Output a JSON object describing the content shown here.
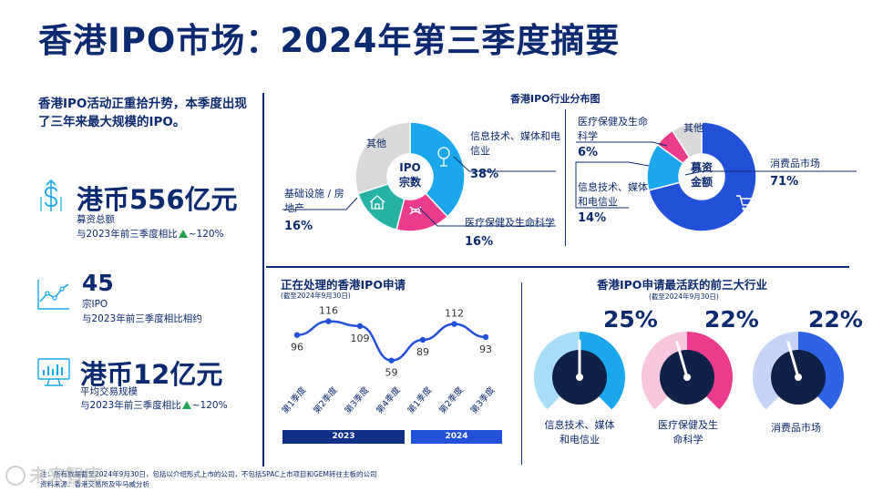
{
  "title": "香港IPO市场：2024年第三季度摘要",
  "intro": "香港IPO活动正重拾升势，本季度出现了三年来最大规模的IPO。",
  "kpis": [
    {
      "value": "港币556亿元",
      "label": "募资总额",
      "compare_prefix": "与2023年前三季度相比",
      "compare_suffix": "~120%",
      "icon": "dollar-growth-icon"
    },
    {
      "value": "45",
      "label": "宗IPO",
      "compare_prefix": "与2023年前三季度相比相约",
      "compare_suffix": "",
      "icon": "line-trend-icon"
    },
    {
      "value": "港币12亿元",
      "label": "平均交易规模",
      "compare_prefix": "与2023年前三季度相比",
      "compare_suffix": "~120%",
      "icon": "monitor-chart-icon"
    }
  ],
  "industry": {
    "title": "香港IPO行业分布图",
    "count_donut": {
      "center_line1": "IPO",
      "center_line2": "宗数",
      "segments": [
        {
          "name": "信息技术、媒体和电信业",
          "pct": 38,
          "label": "38%",
          "color": "#1aa7ec",
          "icon": "brain-tree-icon"
        },
        {
          "name": "医疗保健及生命科学",
          "pct": 16,
          "label": "16%",
          "color": "#ea3b8c",
          "icon": "dna-icon"
        },
        {
          "name": "基础设施 / 房地产",
          "pct": 16,
          "label": "16%",
          "color": "#27b3a4",
          "icon": "house-icon"
        },
        {
          "name": "其他",
          "pct": 30,
          "label": "",
          "color": "#d9d9d9",
          "icon": ""
        }
      ]
    },
    "amount_donut": {
      "center_line1": "募资",
      "center_line2": "金额",
      "segments": [
        {
          "name": "消费品市场",
          "pct": 71,
          "label": "71%",
          "color": "#2250d9",
          "icon": "cart-icon"
        },
        {
          "name": "信息技术、媒体和电信业",
          "pct": 14,
          "label": "14%",
          "color": "#1aa7ec",
          "icon": "brain-tree-icon"
        },
        {
          "name": "医疗保健及生命科学",
          "pct": 6,
          "label": "6%",
          "color": "#ea3b8c",
          "icon": "dna-icon"
        },
        {
          "name": "其他",
          "pct": 9,
          "label": "",
          "color": "#d9d9d9",
          "icon": ""
        }
      ]
    },
    "labels": {
      "tmt_a": "信息技术、媒体和电信业",
      "health_a": "医疗保健及生命科学",
      "infra_a": "基础设施 / 房地产",
      "other": "其他",
      "health_b": "医疗保健及生命科学",
      "tmt_b": "信息技术、媒体和电信业",
      "consumer": "消费品市场"
    }
  },
  "pending": {
    "title": "正在处理的香港IPO申请",
    "subtitle": "(截至2024年9月30日)",
    "years": [
      "2023",
      "2024"
    ],
    "year_colors": [
      "#102f86",
      "#2250d9"
    ]
  },
  "chart_data": {
    "type": "line",
    "categories": [
      "第1季度",
      "第2季度",
      "第3季度",
      "第4季度",
      "第1季度",
      "第2季度",
      "第3季度"
    ],
    "groups": [
      {
        "name": "2023",
        "count": 4
      },
      {
        "name": "2024",
        "count": 3
      }
    ],
    "values": [
      96,
      116,
      109,
      59,
      89,
      112,
      93
    ],
    "title": "正在处理的香港IPO申请",
    "subtitle": "(截至2024年9月30日)",
    "ylim": [
      40,
      130
    ]
  },
  "top3": {
    "title": "香港IPO申请最活跃的前三大行业",
    "subtitle": "(截至2024年9月30日)",
    "gauges": [
      {
        "pct": 25,
        "label": "25%",
        "name": "信息技术、媒体和电信业",
        "light": "#a8ddf7",
        "dark": "#1aa7ec"
      },
      {
        "pct": 22,
        "label": "22%",
        "name": "医疗保健及生命科学",
        "light": "#f8c6dd",
        "dark": "#ea3b8c"
      },
      {
        "pct": 22,
        "label": "22%",
        "name": "消费品市场",
        "light": "#c5d3f6",
        "dark": "#2f63e6"
      }
    ]
  },
  "footnotes": {
    "note": "注：所有数据截至2024年9月30日，包括以介绍形式上市的公司，不包括SPAC上市项目和GEM转往主板的公司",
    "source": "资料来源：香港交易所及毕马威分析",
    "watermark": "未来智库"
  }
}
